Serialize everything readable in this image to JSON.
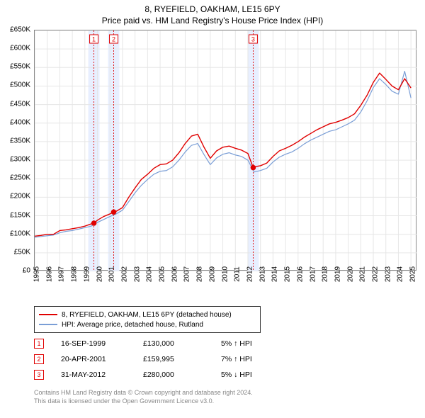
{
  "title_line1": "8, RYEFIELD, OAKHAM, LE15 6PY",
  "title_line2": "Price paid vs. HM Land Registry's House Price Index (HPI)",
  "chart": {
    "type": "line",
    "background_color": "#ffffff",
    "grid_color": "#e6e6e6",
    "axis_color": "#888888",
    "marker_band_color": "#e8efff",
    "marker_line_color": "#e00000",
    "marker_box_border": "#e00000",
    "marker_box_text": "#e00000",
    "xlim": [
      1995,
      2025.5
    ],
    "ylim": [
      0,
      650
    ],
    "ytick_step": 50,
    "ytick_prefix": "£",
    "ytick_suffix": "K",
    "yticks": [
      0,
      50,
      100,
      150,
      200,
      250,
      300,
      350,
      400,
      450,
      500,
      550,
      600,
      650
    ],
    "xticks": [
      1995,
      1996,
      1997,
      1998,
      1999,
      2000,
      2001,
      2002,
      2003,
      2004,
      2005,
      2006,
      2007,
      2008,
      2009,
      2010,
      2011,
      2012,
      2013,
      2014,
      2015,
      2016,
      2017,
      2018,
      2019,
      2020,
      2021,
      2022,
      2023,
      2024,
      2025
    ],
    "marker_bands": [
      {
        "label": "1",
        "x_center": 1999.72,
        "width_years": 0.9
      },
      {
        "label": "2",
        "x_center": 2001.3,
        "width_years": 0.9
      },
      {
        "label": "3",
        "x_center": 2012.42,
        "width_years": 0.9
      }
    ],
    "series": [
      {
        "name": "property",
        "label": "8, RYEFIELD, OAKHAM, LE15 6PY (detached house)",
        "color": "#e00000",
        "line_width": 1.4,
        "data_x": [
          1995.0,
          1995.5,
          1996.0,
          1996.5,
          1997.0,
          1997.5,
          1998.0,
          1998.5,
          1999.0,
          1999.5,
          1999.72,
          2000.0,
          2000.5,
          2001.0,
          2001.3,
          2001.5,
          2002.0,
          2002.5,
          2003.0,
          2003.5,
          2004.0,
          2004.5,
          2005.0,
          2005.5,
          2006.0,
          2006.5,
          2007.0,
          2007.5,
          2008.0,
          2008.5,
          2009.0,
          2009.5,
          2010.0,
          2010.5,
          2011.0,
          2011.5,
          2012.0,
          2012.42,
          2012.5,
          2013.0,
          2013.5,
          2014.0,
          2014.5,
          2015.0,
          2015.5,
          2016.0,
          2016.5,
          2017.0,
          2017.5,
          2018.0,
          2018.5,
          2019.0,
          2019.5,
          2020.0,
          2020.5,
          2021.0,
          2021.5,
          2022.0,
          2022.5,
          2023.0,
          2023.5,
          2024.0,
          2024.5,
          2025.0
        ],
        "data_y": [
          95,
          97,
          100,
          100,
          110,
          112,
          115,
          118,
          122,
          128,
          130,
          138,
          148,
          155,
          160,
          162,
          172,
          200,
          225,
          248,
          262,
          278,
          288,
          290,
          300,
          320,
          345,
          365,
          370,
          335,
          305,
          325,
          335,
          338,
          332,
          327,
          318,
          280,
          282,
          285,
          292,
          310,
          325,
          332,
          340,
          350,
          362,
          372,
          382,
          390,
          398,
          402,
          408,
          415,
          425,
          448,
          475,
          510,
          535,
          518,
          500,
          490,
          520,
          495
        ],
        "markers": [
          {
            "x": 1999.72,
            "y": 130,
            "r": 3.8,
            "color": "#e00000"
          },
          {
            "x": 2001.3,
            "y": 160,
            "r": 3.8,
            "color": "#e00000"
          },
          {
            "x": 2012.42,
            "y": 280,
            "r": 3.8,
            "color": "#e00000"
          }
        ]
      },
      {
        "name": "hpi",
        "label": "HPI: Average price, detached house, Rutland",
        "color": "#7a9ed6",
        "line_width": 1.2,
        "data_x": [
          1995.0,
          1995.5,
          1996.0,
          1996.5,
          1997.0,
          1997.5,
          1998.0,
          1998.5,
          1999.0,
          1999.5,
          2000.0,
          2000.5,
          2001.0,
          2001.5,
          2002.0,
          2002.5,
          2003.0,
          2003.5,
          2004.0,
          2004.5,
          2005.0,
          2005.5,
          2006.0,
          2006.5,
          2007.0,
          2007.5,
          2008.0,
          2008.5,
          2009.0,
          2009.5,
          2010.0,
          2010.5,
          2011.0,
          2011.5,
          2012.0,
          2012.5,
          2013.0,
          2013.5,
          2014.0,
          2014.5,
          2015.0,
          2015.5,
          2016.0,
          2016.5,
          2017.0,
          2017.5,
          2018.0,
          2018.5,
          2019.0,
          2019.5,
          2020.0,
          2020.5,
          2021.0,
          2021.5,
          2022.0,
          2022.5,
          2023.0,
          2023.5,
          2024.0,
          2024.5,
          2025.0
        ],
        "data_y": [
          92,
          94,
          96,
          98,
          104,
          108,
          110,
          114,
          118,
          122,
          132,
          140,
          148,
          155,
          165,
          188,
          212,
          232,
          248,
          262,
          270,
          272,
          282,
          300,
          322,
          340,
          345,
          315,
          288,
          306,
          316,
          320,
          314,
          310,
          300,
          268,
          272,
          278,
          295,
          308,
          316,
          322,
          332,
          344,
          354,
          362,
          370,
          378,
          382,
          390,
          398,
          408,
          430,
          460,
          496,
          520,
          504,
          486,
          478,
          540,
          468
        ]
      }
    ]
  },
  "legend": {
    "border_color": "#333333",
    "items": [
      {
        "color": "#e00000",
        "label": "8, RYEFIELD, OAKHAM, LE15 6PY (detached house)"
      },
      {
        "color": "#7a9ed6",
        "label": "HPI: Average price, detached house, Rutland"
      }
    ]
  },
  "transactions": [
    {
      "num": "1",
      "date": "16-SEP-1999",
      "price": "£130,000",
      "diff": "5% ↑ HPI"
    },
    {
      "num": "2",
      "date": "20-APR-2001",
      "price": "£159,995",
      "diff": "7% ↑ HPI"
    },
    {
      "num": "3",
      "date": "31-MAY-2012",
      "price": "£280,000",
      "diff": "5% ↓ HPI"
    }
  ],
  "footer_line1": "Contains HM Land Registry data © Crown copyright and database right 2024.",
  "footer_line2": "This data is licensed under the Open Government Licence v3.0."
}
